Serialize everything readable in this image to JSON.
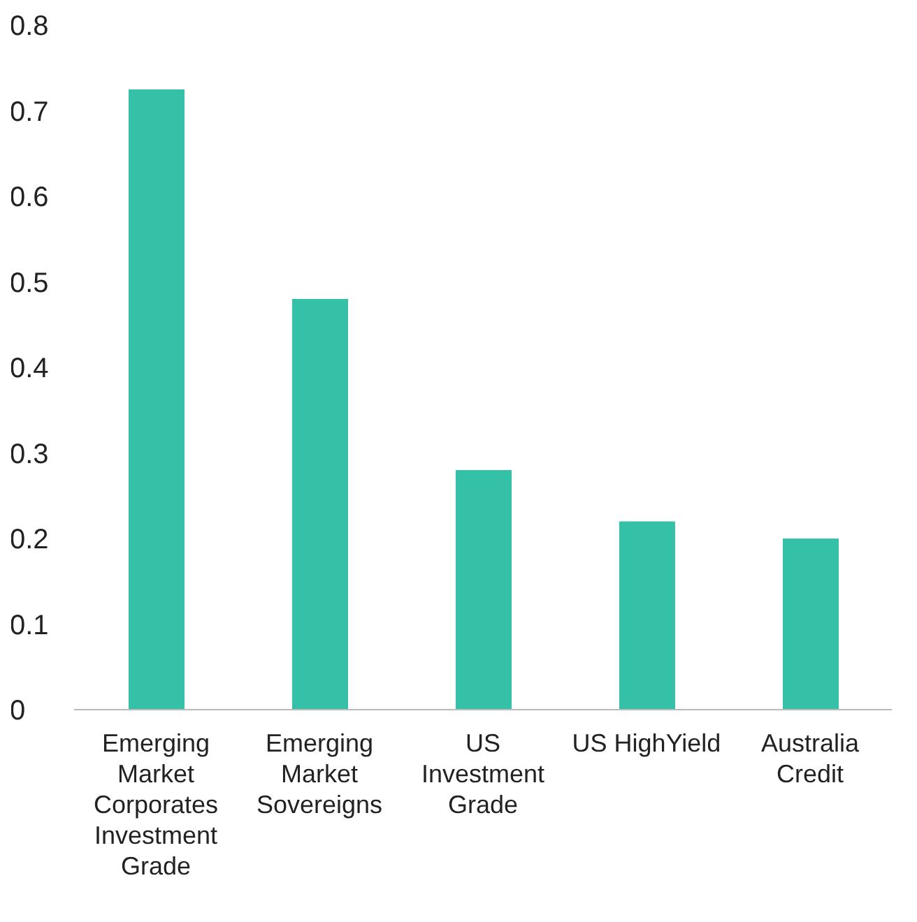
{
  "chart_data": {
    "type": "bar",
    "categories": [
      "Emerging Market Corporates Investment Grade",
      "Emerging Market Sovereigns",
      "US Investment Grade",
      "US HighYield",
      "Australia Credit"
    ],
    "values": [
      0.725,
      0.48,
      0.28,
      0.22,
      0.2
    ],
    "color": "#35c0a8",
    "ylim": [
      0,
      0.8
    ],
    "yticks": [
      0,
      0.1,
      0.2,
      0.3,
      0.4,
      0.5,
      0.6,
      0.7,
      0.8
    ],
    "grid": false,
    "legend": false
  }
}
